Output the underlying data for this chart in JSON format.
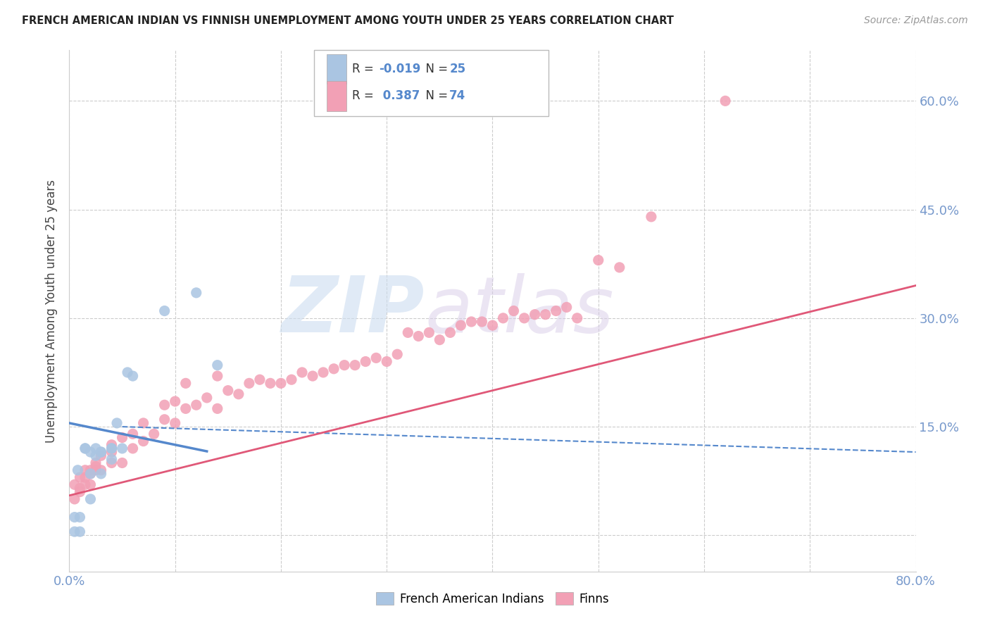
{
  "title": "FRENCH AMERICAN INDIAN VS FINNISH UNEMPLOYMENT AMONG YOUTH UNDER 25 YEARS CORRELATION CHART",
  "source": "Source: ZipAtlas.com",
  "ylabel": "Unemployment Among Youth under 25 years",
  "legend_label1": "French American Indians",
  "legend_label2": "Finns",
  "R1": "-0.019",
  "N1": "25",
  "R2": "0.387",
  "N2": "74",
  "color_blue": "#aac5e2",
  "color_pink": "#f2a0b5",
  "color_blue_line": "#5588cc",
  "color_pink_line": "#e05878",
  "xlim": [
    0.0,
    0.8
  ],
  "ylim": [
    -0.05,
    0.67
  ],
  "xtick_vals": [
    0.0,
    0.1,
    0.2,
    0.3,
    0.4,
    0.5,
    0.6,
    0.7,
    0.8
  ],
  "ytick_vals": [
    0.0,
    0.15,
    0.3,
    0.45,
    0.6
  ],
  "ytick_labels": [
    "",
    "15.0%",
    "30.0%",
    "45.0%",
    "60.0%"
  ],
  "french_x": [
    0.005,
    0.005,
    0.008,
    0.01,
    0.01,
    0.015,
    0.015,
    0.02,
    0.02,
    0.02,
    0.025,
    0.025,
    0.03,
    0.03,
    0.03,
    0.04,
    0.04,
    0.04,
    0.045,
    0.05,
    0.055,
    0.06,
    0.09,
    0.12,
    0.14
  ],
  "french_y": [
    0.025,
    0.005,
    0.09,
    0.005,
    0.025,
    0.12,
    0.12,
    0.05,
    0.085,
    0.115,
    0.12,
    0.11,
    0.115,
    0.115,
    0.085,
    0.12,
    0.12,
    0.105,
    0.155,
    0.12,
    0.225,
    0.22,
    0.31,
    0.335,
    0.235
  ],
  "finns_x": [
    0.005,
    0.005,
    0.01,
    0.01,
    0.01,
    0.015,
    0.015,
    0.015,
    0.02,
    0.02,
    0.02,
    0.025,
    0.025,
    0.025,
    0.03,
    0.03,
    0.04,
    0.04,
    0.04,
    0.05,
    0.05,
    0.06,
    0.06,
    0.07,
    0.07,
    0.08,
    0.09,
    0.09,
    0.1,
    0.1,
    0.11,
    0.11,
    0.12,
    0.13,
    0.14,
    0.14,
    0.15,
    0.16,
    0.17,
    0.18,
    0.19,
    0.2,
    0.21,
    0.22,
    0.23,
    0.24,
    0.25,
    0.26,
    0.27,
    0.28,
    0.29,
    0.3,
    0.31,
    0.32,
    0.33,
    0.34,
    0.35,
    0.36,
    0.37,
    0.38,
    0.39,
    0.4,
    0.41,
    0.42,
    0.43,
    0.44,
    0.45,
    0.46,
    0.47,
    0.48,
    0.5,
    0.52,
    0.55,
    0.62
  ],
  "finns_y": [
    0.05,
    0.07,
    0.06,
    0.065,
    0.08,
    0.07,
    0.08,
    0.09,
    0.07,
    0.085,
    0.09,
    0.09,
    0.095,
    0.1,
    0.09,
    0.11,
    0.1,
    0.115,
    0.125,
    0.1,
    0.135,
    0.12,
    0.14,
    0.13,
    0.155,
    0.14,
    0.16,
    0.18,
    0.155,
    0.185,
    0.175,
    0.21,
    0.18,
    0.19,
    0.175,
    0.22,
    0.2,
    0.195,
    0.21,
    0.215,
    0.21,
    0.21,
    0.215,
    0.225,
    0.22,
    0.225,
    0.23,
    0.235,
    0.235,
    0.24,
    0.245,
    0.24,
    0.25,
    0.28,
    0.275,
    0.28,
    0.27,
    0.28,
    0.29,
    0.295,
    0.295,
    0.29,
    0.3,
    0.31,
    0.3,
    0.305,
    0.305,
    0.31,
    0.315,
    0.3,
    0.38,
    0.37,
    0.44,
    0.6
  ],
  "blue_line_x0": 0.0,
  "blue_line_x1": 0.8,
  "blue_line_y0": 0.155,
  "blue_line_y1": 0.115,
  "pink_line_x0": 0.0,
  "pink_line_x1": 0.8,
  "pink_line_y0": 0.055,
  "pink_line_y1": 0.345
}
